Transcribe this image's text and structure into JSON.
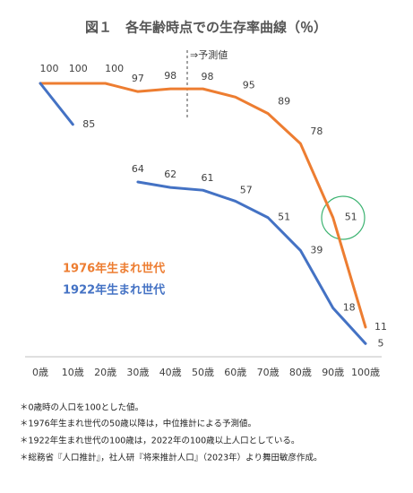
{
  "chart_data": {
    "type": "line",
    "title": "図１　各年齢時点での生存率曲線（％）",
    "categories": [
      "0歳",
      "10歳",
      "20歳",
      "30歳",
      "40歳",
      "50歳",
      "60歳",
      "70歳",
      "80歳",
      "90歳",
      "100歳"
    ],
    "series": [
      {
        "name": "1976年生まれ世代",
        "color": "#ed7d31",
        "values": [
          100,
          100,
          100,
          97,
          98,
          98,
          95,
          89,
          78,
          51,
          11
        ]
      },
      {
        "name": "1922年生まれ世代",
        "color": "#4472c4",
        "values": [
          100,
          85,
          null,
          64,
          62,
          61,
          57,
          51,
          39,
          18,
          5
        ]
      }
    ],
    "ylim": [
      0,
      100
    ],
    "annotation": "⇒予測値"
  },
  "notes": [
    "＊0歳時の人口を100とした値。",
    "＊1976年生まれ世代の50歳以降は，中位推計による予測値。",
    "＊1922年生まれ世代の100歳は，2022年の100歳以上人口としている。",
    "＊総務省『人口推計』，社人研『将来推計人口』（2023年）より舞田敏彦作成。"
  ]
}
